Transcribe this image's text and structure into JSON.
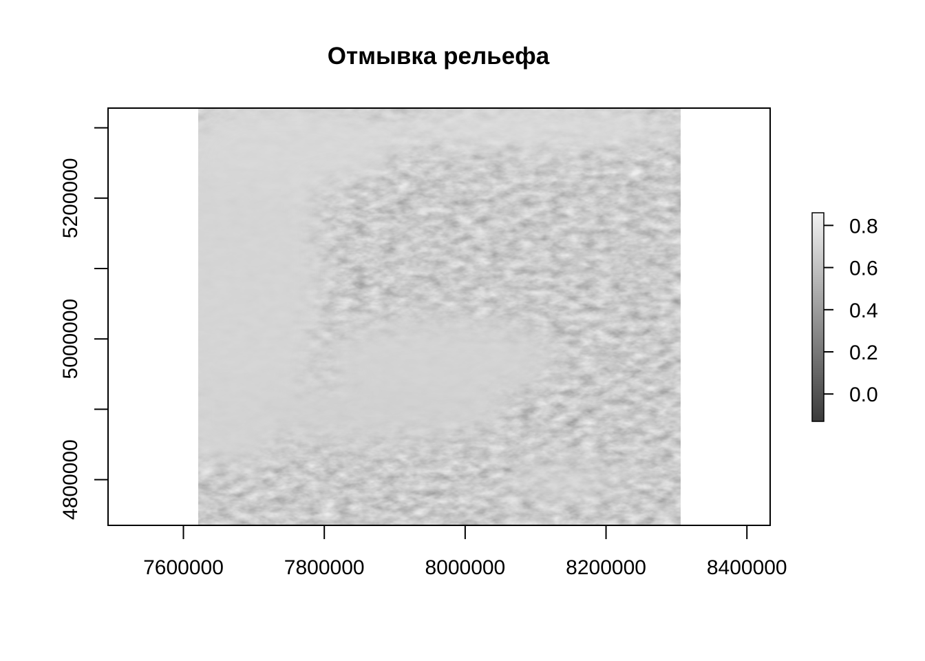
{
  "chart_data": {
    "type": "heatmap",
    "title": "Отмывка рельефа",
    "xlabel": "",
    "ylabel": "",
    "x_ticks": [
      {
        "value": 7600000,
        "label": "7600000"
      },
      {
        "value": 7800000,
        "label": "7800000"
      },
      {
        "value": 8000000,
        "label": "8000000"
      },
      {
        "value": 8200000,
        "label": "8200000"
      },
      {
        "value": 8400000,
        "label": "8400000"
      }
    ],
    "y_ticks": [
      {
        "value": 4800000,
        "label": "4800000"
      },
      {
        "value": 4900000,
        "label": ""
      },
      {
        "value": 5000000,
        "label": "5000000"
      },
      {
        "value": 5100000,
        "label": ""
      },
      {
        "value": 5200000,
        "label": "5200000"
      },
      {
        "value": 5300000,
        "label": ""
      }
    ],
    "xlim": [
      7493000,
      8433000
    ],
    "ylim": [
      4735000,
      5328000
    ],
    "raster_extent": {
      "xmin": 7620000,
      "xmax": 8305000,
      "ymin": 4735000,
      "ymax": 5328000
    },
    "value_range": [
      -0.13,
      0.86
    ],
    "colorbar": {
      "ticks": [
        {
          "value": 0.8,
          "label": "0.8"
        },
        {
          "value": 0.6,
          "label": "0.6"
        },
        {
          "value": 0.4,
          "label": "0.4"
        },
        {
          "value": 0.2,
          "label": "0.2"
        },
        {
          "value": 0.0,
          "label": "0.0"
        }
      ],
      "color_low": "#3a3a3a",
      "color_high": "#f2f2f2"
    },
    "legend_position": "right",
    "grid": false
  }
}
